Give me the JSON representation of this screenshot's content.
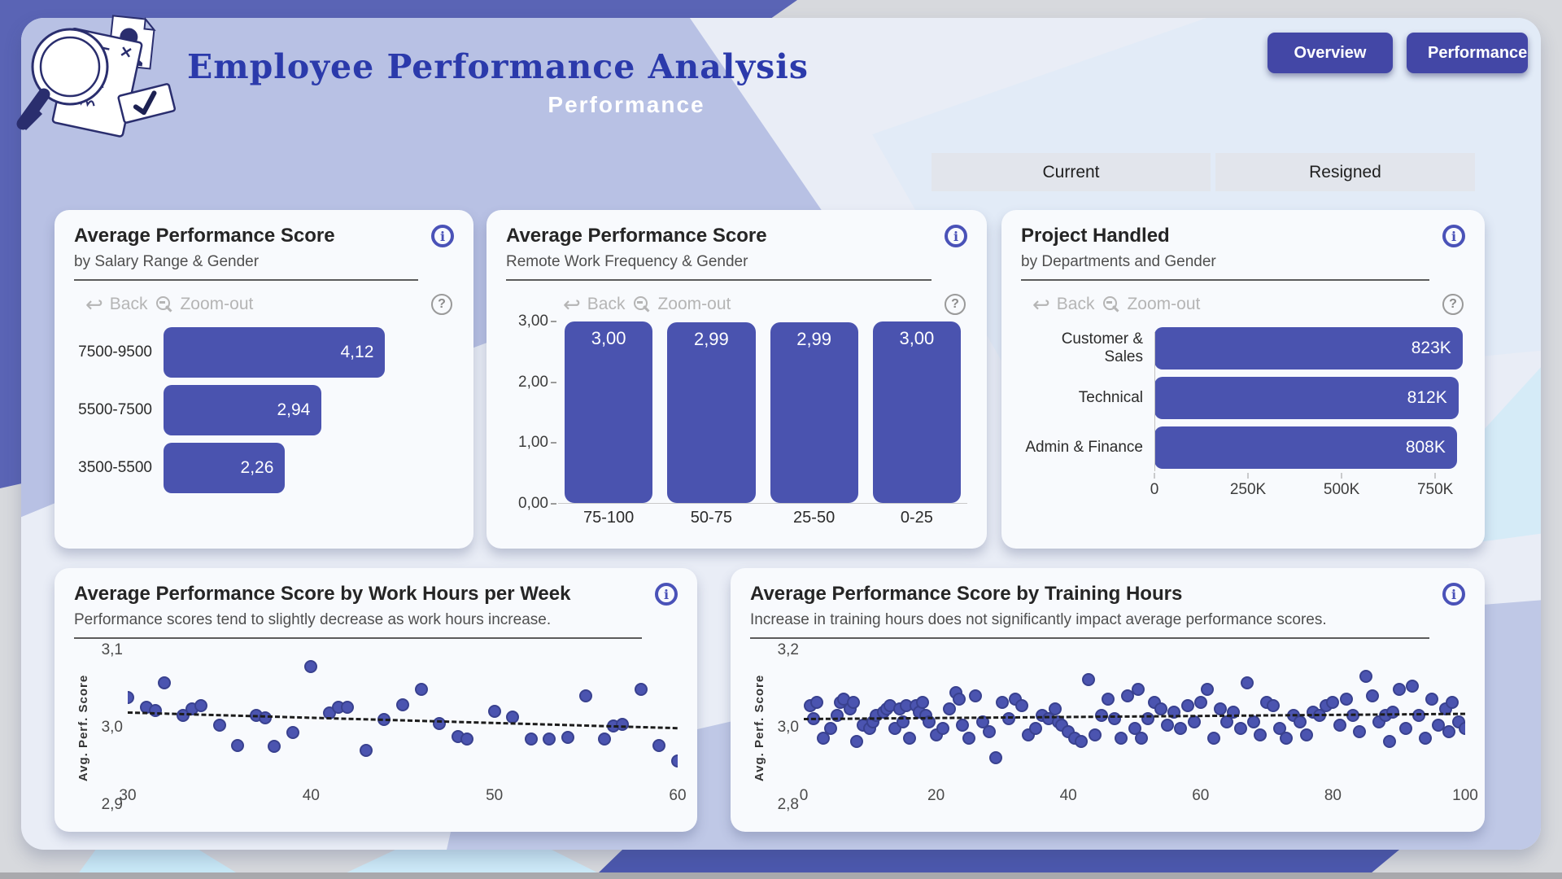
{
  "header": {
    "title": "Employee Performance Analysis",
    "subtitle": "Performance"
  },
  "nav_buttons": [
    {
      "label": "Overview"
    },
    {
      "label": "Performance"
    }
  ],
  "filter_tabs": [
    {
      "label": "Current"
    },
    {
      "label": "Resigned"
    }
  ],
  "toolbar": {
    "back_label": "Back",
    "zoom_label": "Zoom-out"
  },
  "colors": {
    "accent": "#4a53af",
    "nav_button": "#4347a6",
    "header_title": "#2b3aab",
    "outer_indigo": "#5a64b5",
    "periwinkle": "#b8c1e4",
    "canvas": "#e9edf6",
    "card": "#f8fafd",
    "dot": "#4b54b0",
    "trend": "#1c1c1c"
  },
  "chart_data": [
    {
      "id": "salary_bar",
      "type": "bar",
      "orientation": "horizontal",
      "title": "Average Performance Score",
      "subtitle": "by Salary Range & Gender",
      "categories": [
        "7500-9500",
        "5500-7500",
        "3500-5500"
      ],
      "values": [
        4.12,
        2.94,
        2.26
      ],
      "value_labels": [
        "4,12",
        "2,94",
        "2,26"
      ],
      "xlim": [
        0,
        5.4
      ],
      "grid": false
    },
    {
      "id": "remote_bar",
      "type": "bar",
      "orientation": "vertical",
      "title": "Average Performance Score",
      "subtitle": "Remote Work Frequency & Gender",
      "categories": [
        "75-100",
        "50-75",
        "25-50",
        "0-25"
      ],
      "values": [
        3.0,
        2.99,
        2.99,
        3.0
      ],
      "value_labels": [
        "3,00",
        "2,99",
        "2,99",
        "3,00"
      ],
      "y_ticks": [
        "3,00",
        "2,00",
        "1,00",
        "0,00"
      ],
      "y_tick_values": [
        3,
        2,
        1,
        0
      ],
      "ylim": [
        0,
        3
      ],
      "grid": false
    },
    {
      "id": "projects_bar",
      "type": "bar",
      "orientation": "horizontal",
      "title": "Project Handled",
      "subtitle": "by Departments and Gender",
      "categories": [
        "Customer & Sales",
        "Technical",
        "Admin & Finance"
      ],
      "values": [
        823000,
        812000,
        808000
      ],
      "value_labels": [
        "823K",
        "812K",
        "808K"
      ],
      "x_ticks": [
        "0",
        "250K",
        "500K",
        "750K"
      ],
      "x_tick_values": [
        0,
        250000,
        500000,
        750000
      ],
      "xlim": [
        0,
        830000
      ],
      "grid": false
    },
    {
      "id": "work_hours_scatter",
      "type": "scatter",
      "title": "Average Performance Score by Work Hours per Week",
      "subtitle": "Performance scores tend to slightly decrease as work hours increase.",
      "ylabel": "Avg. Perf. Score",
      "x_ticks": [
        "30",
        "40",
        "50",
        "60"
      ],
      "x_tick_values": [
        30,
        40,
        50,
        60
      ],
      "y_ticks": [
        "3,1",
        "3,0",
        "2,9"
      ],
      "y_tick_values": [
        3.1,
        3.0,
        2.9
      ],
      "xlim": [
        30,
        60
      ],
      "ylim": [
        2.9,
        3.1
      ],
      "trend": {
        "style": "dashed",
        "from": [
          30,
          3.006
        ],
        "to": [
          60,
          2.982
        ]
      },
      "points": [
        [
          30,
          3.028
        ],
        [
          31,
          3.012
        ],
        [
          31.5,
          3.008
        ],
        [
          32,
          3.05
        ],
        [
          33,
          3.0
        ],
        [
          33.5,
          3.01
        ],
        [
          34,
          3.015
        ],
        [
          35,
          2.985
        ],
        [
          36,
          2.954
        ],
        [
          37,
          3.0
        ],
        [
          37.5,
          2.996
        ],
        [
          38,
          2.952
        ],
        [
          39,
          2.974
        ],
        [
          40,
          3.075
        ],
        [
          41,
          3.004
        ],
        [
          41.5,
          3.012
        ],
        [
          42,
          3.012
        ],
        [
          43,
          2.946
        ],
        [
          44,
          2.994
        ],
        [
          45,
          3.016
        ],
        [
          46,
          3.04
        ],
        [
          47,
          2.988
        ],
        [
          48,
          2.968
        ],
        [
          48.5,
          2.964
        ],
        [
          50,
          3.006
        ],
        [
          51,
          2.998
        ],
        [
          52,
          2.964
        ],
        [
          53,
          2.964
        ],
        [
          54,
          2.966
        ],
        [
          55,
          3.03
        ],
        [
          56,
          2.964
        ],
        [
          56.5,
          2.984
        ],
        [
          57,
          2.986
        ],
        [
          58,
          3.04
        ],
        [
          59,
          2.954
        ],
        [
          60,
          2.93
        ]
      ]
    },
    {
      "id": "training_scatter",
      "type": "scatter",
      "title": "Average Performance Score by Training Hours",
      "subtitle": "Increase in training hours does not significantly impact average performance scores.",
      "ylabel": "Avg. Perf. Score",
      "x_ticks": [
        "0",
        "20",
        "40",
        "60",
        "80",
        "100"
      ],
      "x_tick_values": [
        0,
        20,
        40,
        60,
        80,
        100
      ],
      "y_ticks": [
        "3,2",
        "3,0",
        "2,8"
      ],
      "y_tick_values": [
        3.2,
        3.0,
        2.8
      ],
      "xlim": [
        0,
        100
      ],
      "ylim": [
        2.8,
        3.2
      ],
      "trend": {
        "style": "dashed",
        "from": [
          0,
          2.992
        ],
        "to": [
          100,
          3.008
        ]
      },
      "points": [
        [
          1,
          3.03
        ],
        [
          1.5,
          2.99
        ],
        [
          2,
          3.04
        ],
        [
          3,
          2.93
        ],
        [
          4,
          2.96
        ],
        [
          5,
          3.0
        ],
        [
          5.5,
          3.04
        ],
        [
          6,
          3.05
        ],
        [
          7,
          3.02
        ],
        [
          7.5,
          3.04
        ],
        [
          8,
          2.92
        ],
        [
          9,
          2.97
        ],
        [
          10,
          2.96
        ],
        [
          10.5,
          2.98
        ],
        [
          11,
          3.0
        ],
        [
          12,
          3.01
        ],
        [
          12.5,
          3.02
        ],
        [
          13,
          3.03
        ],
        [
          13.8,
          2.96
        ],
        [
          14.5,
          3.02
        ],
        [
          15,
          2.98
        ],
        [
          15.5,
          3.03
        ],
        [
          16,
          2.93
        ],
        [
          17,
          3.03
        ],
        [
          17.5,
          3.01
        ],
        [
          18,
          3.04
        ],
        [
          18.5,
          3.0
        ],
        [
          19,
          2.98
        ],
        [
          20,
          2.94
        ],
        [
          21,
          2.96
        ],
        [
          22,
          3.02
        ],
        [
          23,
          3.07
        ],
        [
          23.5,
          3.05
        ],
        [
          24,
          2.97
        ],
        [
          25,
          2.93
        ],
        [
          26,
          3.06
        ],
        [
          27,
          2.98
        ],
        [
          28,
          2.95
        ],
        [
          29,
          2.87
        ],
        [
          30,
          3.04
        ],
        [
          31,
          2.99
        ],
        [
          32,
          3.05
        ],
        [
          33,
          3.03
        ],
        [
          34,
          2.94
        ],
        [
          35,
          2.96
        ],
        [
          36,
          3.0
        ],
        [
          37,
          2.99
        ],
        [
          38,
          3.02
        ],
        [
          38.5,
          2.98
        ],
        [
          39,
          2.97
        ],
        [
          40,
          2.95
        ],
        [
          41,
          2.93
        ],
        [
          42,
          2.92
        ],
        [
          43,
          3.11
        ],
        [
          44,
          2.94
        ],
        [
          45,
          3.0
        ],
        [
          46,
          3.05
        ],
        [
          47,
          2.99
        ],
        [
          48,
          2.93
        ],
        [
          49,
          3.06
        ],
        [
          50,
          2.96
        ],
        [
          50.5,
          3.08
        ],
        [
          51,
          2.93
        ],
        [
          52,
          2.99
        ],
        [
          53,
          3.04
        ],
        [
          54,
          3.02
        ],
        [
          55,
          2.97
        ],
        [
          56,
          3.01
        ],
        [
          57,
          2.96
        ],
        [
          58,
          3.03
        ],
        [
          59,
          2.98
        ],
        [
          60,
          3.04
        ],
        [
          61,
          3.08
        ],
        [
          62,
          2.93
        ],
        [
          63,
          3.02
        ],
        [
          64,
          2.98
        ],
        [
          65,
          3.01
        ],
        [
          66,
          2.96
        ],
        [
          67,
          3.1
        ],
        [
          68,
          2.98
        ],
        [
          69,
          2.94
        ],
        [
          70,
          3.04
        ],
        [
          71,
          3.03
        ],
        [
          72,
          2.96
        ],
        [
          73,
          2.93
        ],
        [
          74,
          3.0
        ],
        [
          75,
          2.98
        ],
        [
          76,
          2.94
        ],
        [
          77,
          3.01
        ],
        [
          78,
          3.0
        ],
        [
          79,
          3.03
        ],
        [
          80,
          3.04
        ],
        [
          81,
          2.97
        ],
        [
          82,
          3.05
        ],
        [
          83,
          3.0
        ],
        [
          84,
          2.95
        ],
        [
          85,
          3.12
        ],
        [
          86,
          3.06
        ],
        [
          87,
          2.98
        ],
        [
          88,
          3.0
        ],
        [
          88.5,
          2.92
        ],
        [
          89,
          3.01
        ],
        [
          90,
          3.08
        ],
        [
          91,
          2.96
        ],
        [
          92,
          3.09
        ],
        [
          93,
          3.0
        ],
        [
          94,
          2.93
        ],
        [
          95,
          3.05
        ],
        [
          96,
          2.97
        ],
        [
          97,
          3.02
        ],
        [
          97.5,
          2.95
        ],
        [
          98,
          3.04
        ],
        [
          99,
          2.98
        ],
        [
          100,
          2.96
        ]
      ]
    }
  ]
}
